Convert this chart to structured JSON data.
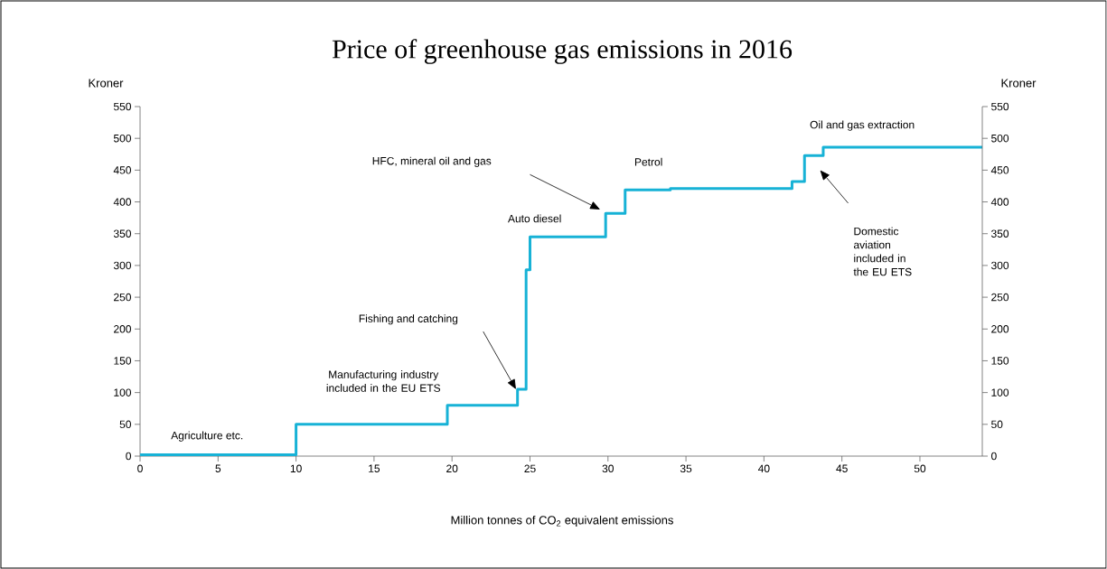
{
  "chart_data": {
    "type": "step",
    "title": "Price of greenhouse gas emissions in 2016",
    "xlabel": "Million tonnes of CO$_{2}$ equivalent emissions",
    "ylabel": "Kroner",
    "y2label": "Kroner",
    "x": [
      0,
      10,
      19.7,
      24.2,
      24.75,
      25.0,
      29.85,
      31.1,
      34,
      41.8,
      42.6,
      43.8,
      54
    ],
    "series": [
      {
        "color": "#17b2d6",
        "values": [
          2,
          50,
          80,
          105,
          293,
          345,
          382,
          419,
          421,
          432,
          473,
          486,
          486
        ]
      }
    ],
    "xlim": [
      0,
      54
    ],
    "xticks": [
      0,
      5,
      10,
      15,
      20,
      25,
      30,
      35,
      40,
      45,
      50
    ],
    "ylim": [
      0,
      550
    ],
    "yticks": [
      0,
      50,
      100,
      150,
      200,
      250,
      300,
      350,
      400,
      450,
      500,
      550
    ],
    "y2lim": [
      0,
      550
    ],
    "y2ticks": [
      0,
      50,
      100,
      150,
      200,
      250,
      300,
      350,
      400,
      450,
      500,
      550
    ],
    "annotations": [
      "Agriculture etc.",
      "Manufacturing industry included in the EU ETS",
      "Fishing and catching",
      "Auto diesel",
      "HFC, mineral oil and gas",
      "Petrol",
      "Oil and gas extraction",
      "Domestic aviation included in the EU ETS"
    ],
    "grid": false,
    "marker": "none",
    "line_style": "solid"
  }
}
